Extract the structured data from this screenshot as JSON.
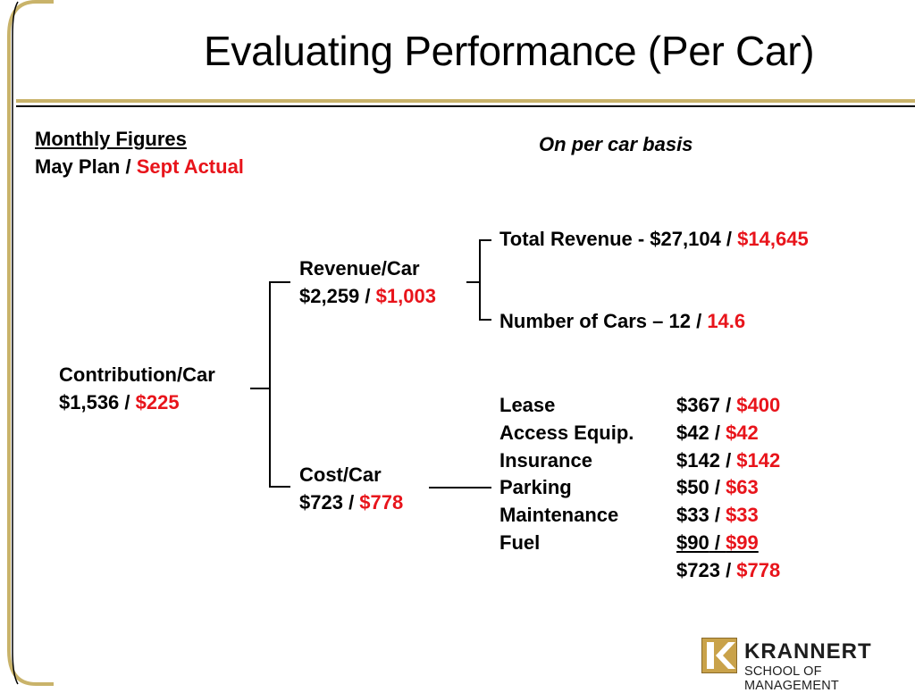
{
  "slide": {
    "title": "Evaluating Performance (Per Car)",
    "accent_color": "#c9b36a",
    "highlight_color": "#e8141b"
  },
  "legend": {
    "heading": "Monthly Figures",
    "plan_label": "May Plan",
    "separator": " / ",
    "actual_label": "Sept Actual"
  },
  "basis_note": "On per car basis",
  "tree": {
    "contribution": {
      "label": "Contribution/Car",
      "plan": "$1,536",
      "actual": "$225"
    },
    "revenue": {
      "label": "Revenue/Car",
      "plan": "$2,259",
      "actual": "$1,003"
    },
    "cost": {
      "label": "Cost/Car",
      "plan": "$723",
      "actual": "$778"
    },
    "total_revenue": {
      "label": "Total Revenue - $27,104 / ",
      "actual": "$14,645"
    },
    "number_of_cars": {
      "label": "Number of Cars – 12 / ",
      "actual": "14.6"
    }
  },
  "costs": [
    {
      "label": "Lease",
      "plan": "$367",
      "actual": "$400"
    },
    {
      "label": "Access Equip.",
      "plan": "$42",
      "actual": "$42"
    },
    {
      "label": "Insurance",
      "plan": "$142",
      "actual": "$142"
    },
    {
      "label": "Parking",
      "plan": "$50",
      "actual": "$63"
    },
    {
      "label": "Maintenance",
      "plan": "$33",
      "actual": "$33"
    },
    {
      "label": "Fuel",
      "plan": "$90",
      "actual": "$99"
    }
  ],
  "cost_total": {
    "plan": "$723",
    "actual": "$778"
  },
  "logo": {
    "name": "KRANNERT",
    "subtitle": "SCHOOL OF MANAGEMENT"
  }
}
